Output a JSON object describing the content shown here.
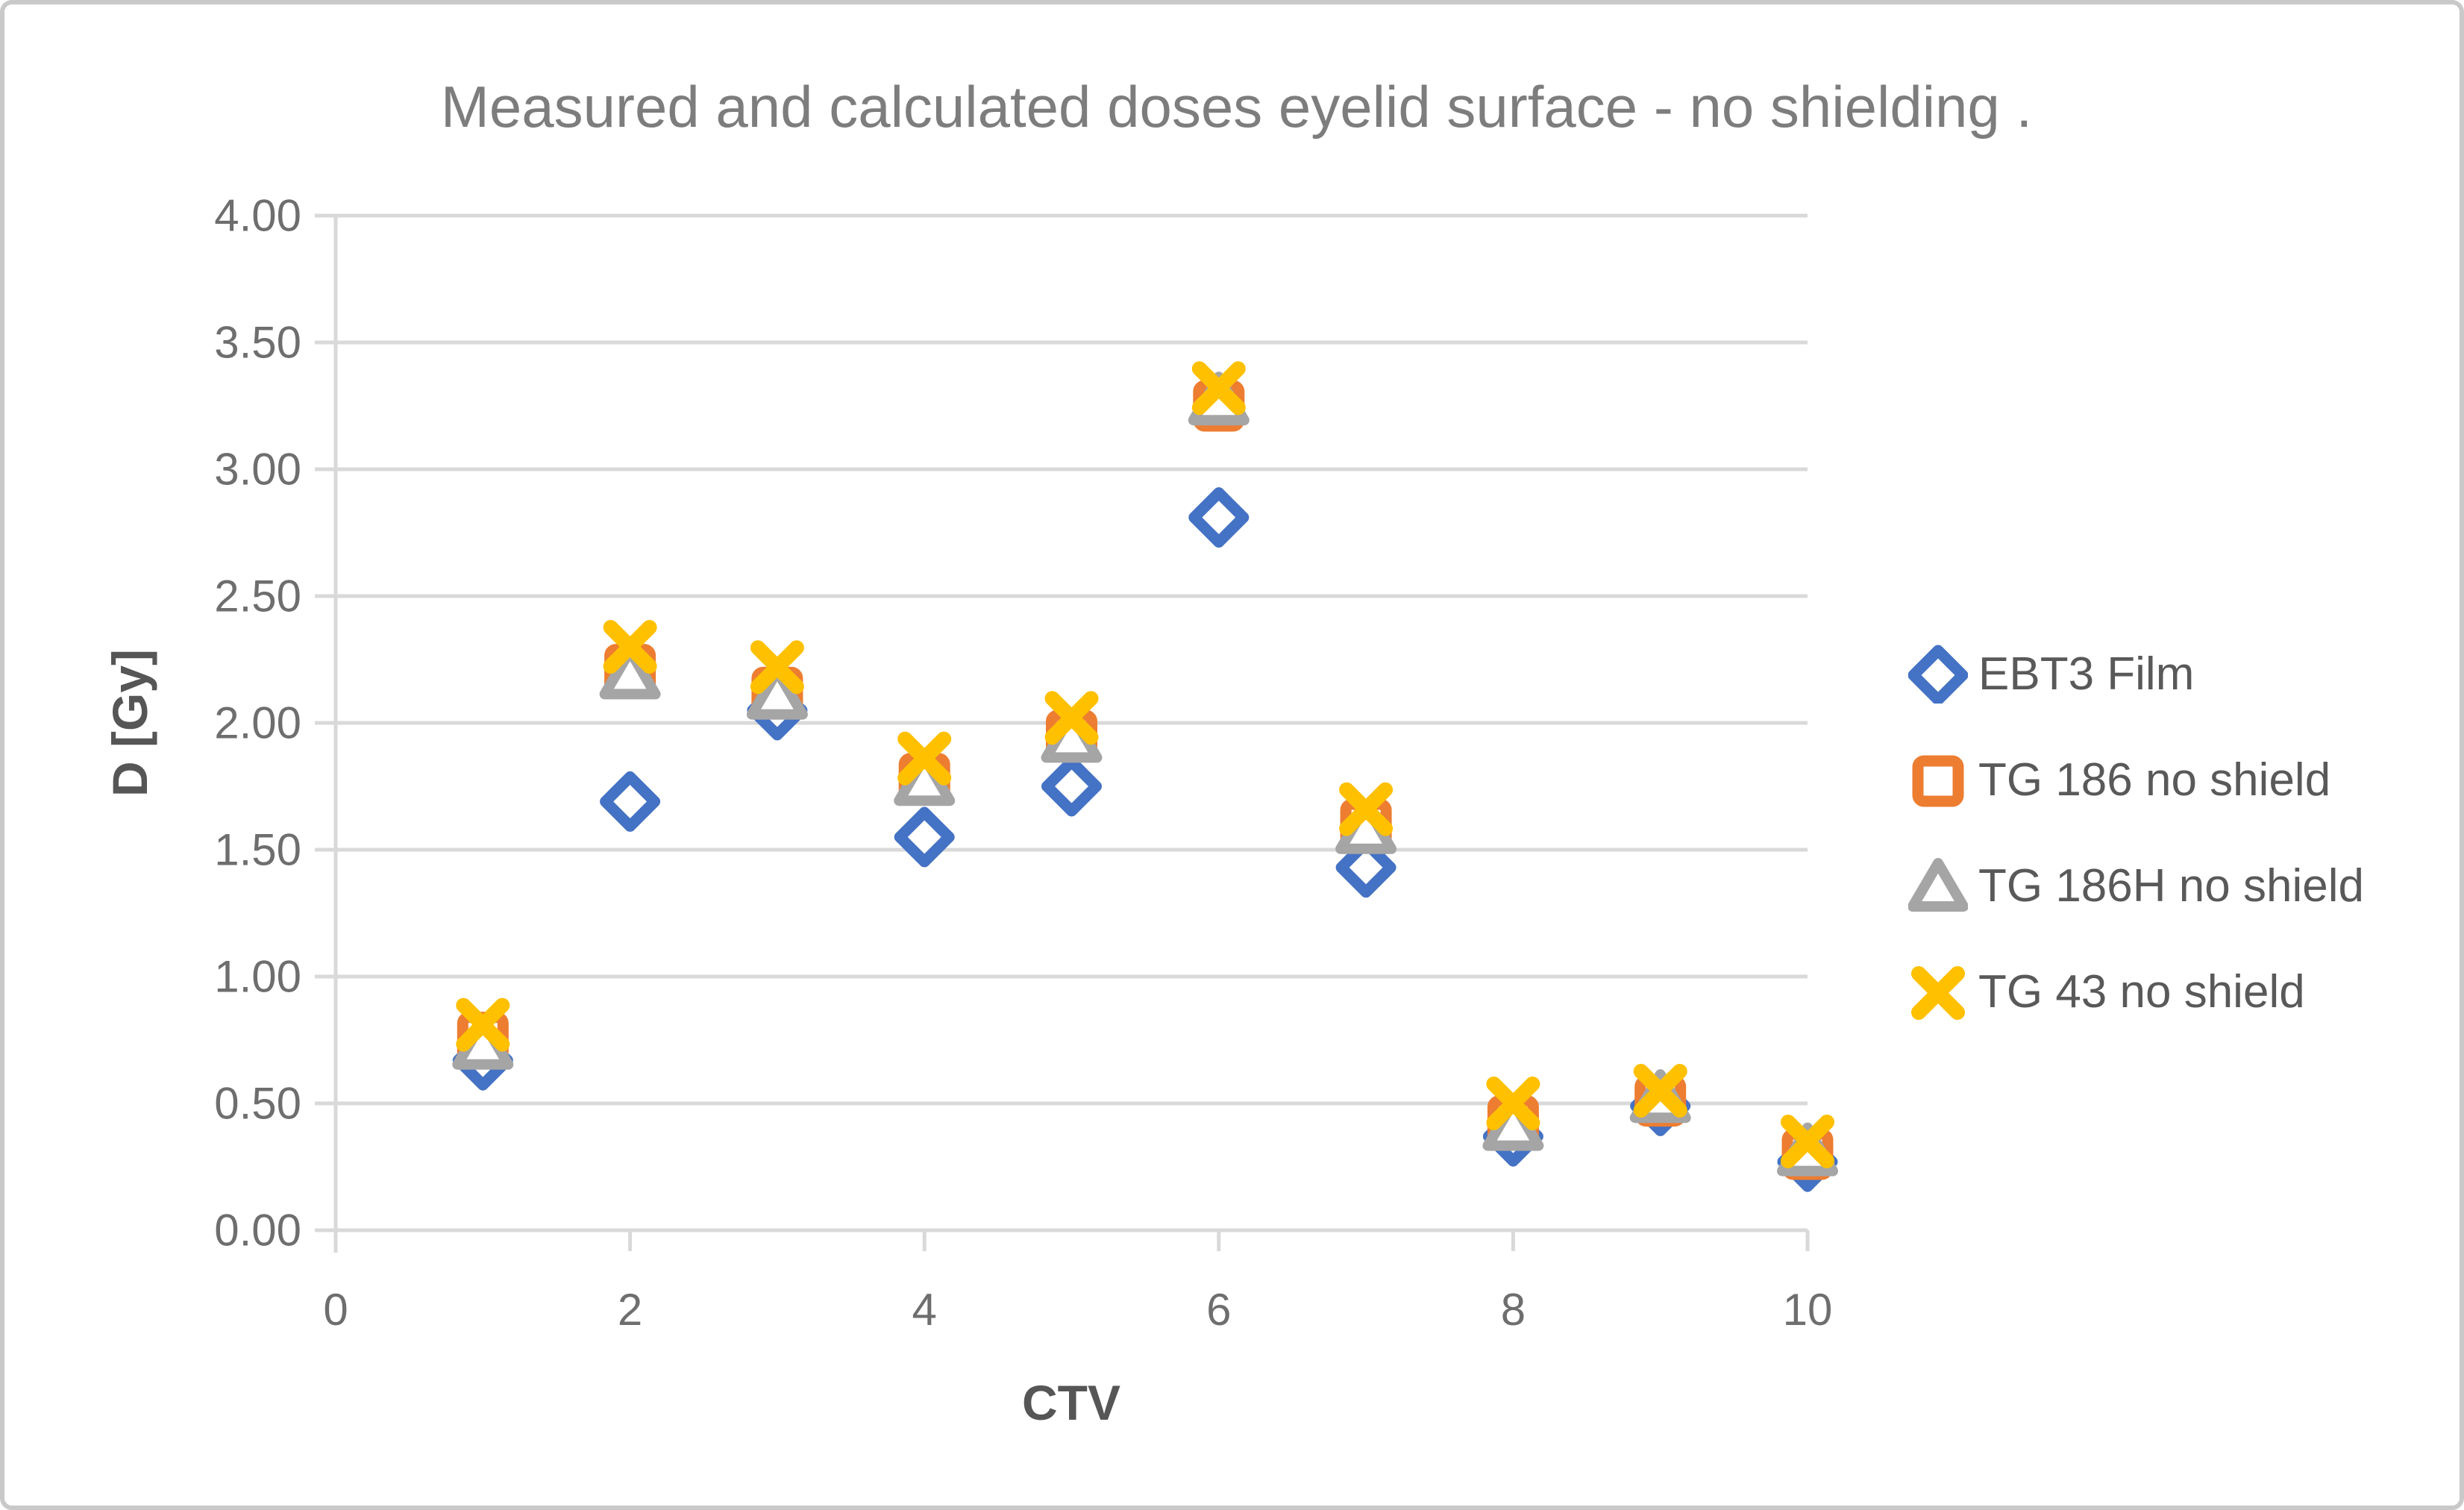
{
  "chart_data": {
    "type": "scatter",
    "title": "Measured and calculated doses eyelid surface - no shielding .",
    "xlabel": "CTV",
    "ylabel": "D [Gy]",
    "xlim": [
      0,
      10
    ],
    "ylim": [
      0,
      4
    ],
    "x_tick_labels": [
      "0",
      "2",
      "4",
      "6",
      "8",
      "10"
    ],
    "x_tick_values": [
      0,
      2,
      4,
      6,
      8,
      10
    ],
    "y_tick_labels": [
      "0.00",
      "0.50",
      "1.00",
      "1.50",
      "2.00",
      "2.50",
      "3.00",
      "3.50",
      "4.00"
    ],
    "y_tick_values": [
      0,
      0.5,
      1,
      1.5,
      2,
      2.5,
      3,
      3.5,
      4
    ],
    "grid": "horizontal",
    "legend_position": "right",
    "x": [
      1,
      2,
      3,
      4,
      5,
      6,
      7,
      8,
      9,
      10
    ],
    "series": [
      {
        "name": "EBT3 Film",
        "marker": "diamond",
        "color": "#4472C4",
        "values": [
          0.67,
          1.69,
          2.05,
          1.55,
          1.75,
          2.81,
          1.43,
          0.37,
          0.49,
          0.27
        ]
      },
      {
        "name": "TG 186 no shield",
        "marker": "square",
        "color": "#ED7D31",
        "values": [
          0.76,
          2.21,
          2.12,
          1.78,
          1.95,
          3.25,
          1.6,
          0.43,
          0.51,
          0.3
        ]
      },
      {
        "name": "TG 186H no shield",
        "marker": "triangle",
        "color": "#A5A5A5",
        "values": [
          0.73,
          2.19,
          2.11,
          1.77,
          1.94,
          3.27,
          1.58,
          0.41,
          0.52,
          0.31
        ]
      },
      {
        "name": "TG 43 no shield",
        "marker": "x",
        "color": "#FFC000",
        "values": [
          0.81,
          2.3,
          2.22,
          1.86,
          2.02,
          3.32,
          1.66,
          0.5,
          0.55,
          0.35
        ]
      }
    ],
    "grid_color": "#D9D9D9",
    "axis_line_color": "#D9D9D9",
    "tick_label_color": "#6e6e6e",
    "title_color": "#7d7d7d",
    "axis_title_color": "#565656",
    "frame_border_color": "#c9c9c9",
    "background_color": "#ffffff"
  }
}
